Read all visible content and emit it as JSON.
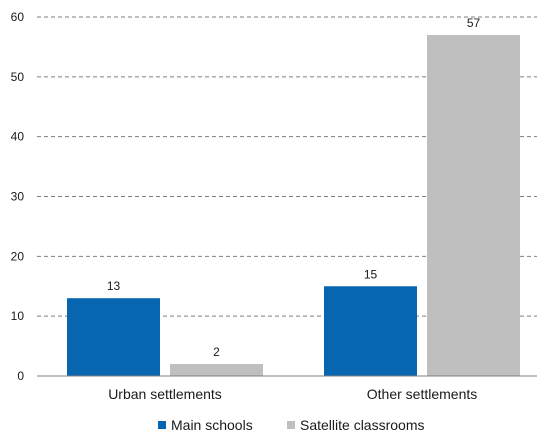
{
  "chart_data": {
    "type": "bar",
    "categories": [
      "Urban settlements",
      "Other settlements"
    ],
    "series": [
      {
        "name": "Main schools",
        "values": [
          13,
          15
        ],
        "color": "#0866b0"
      },
      {
        "name": "Satellite classrooms",
        "values": [
          2,
          57
        ],
        "color": "#bfbfbf"
      }
    ],
    "ylim": [
      0,
      60
    ],
    "yticks": [
      0,
      10,
      20,
      30,
      40,
      50,
      60
    ],
    "grid": "horizontal-dashed",
    "legend_position": "bottom",
    "data_labels": true
  }
}
